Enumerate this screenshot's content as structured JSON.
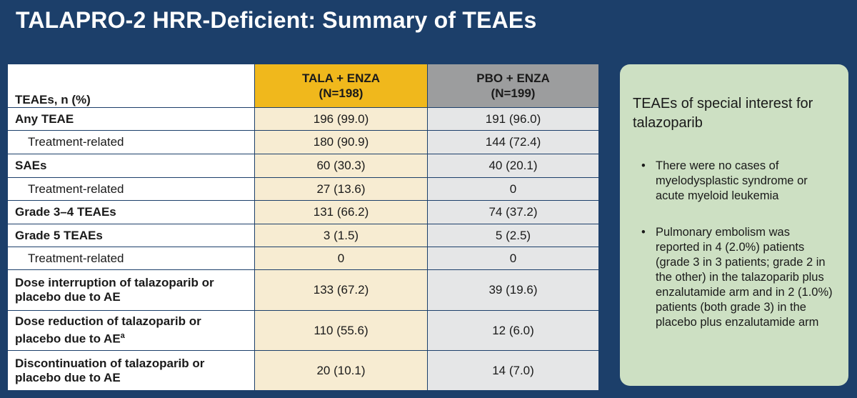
{
  "title": "TALAPRO-2 HRR-Deficient: Summary of TEAEs",
  "table": {
    "header": {
      "label": "TEAEs, n (%)",
      "tala_line1": "TALA + ENZA",
      "tala_line2": "(N=198)",
      "pbo_line1": "PBO + ENZA",
      "pbo_line2": "(N=199)"
    },
    "rows": [
      {
        "line1": "Any TEAE",
        "line2": "",
        "tala": "196 (99.0)",
        "pbo": "191 (96.0)"
      },
      {
        "line1": "Treatment-related",
        "line2": "",
        "tala": "180 (90.9)",
        "pbo": "144 (72.4)"
      },
      {
        "line1": "SAEs",
        "line2": "",
        "tala": "60 (30.3)",
        "pbo": "40 (20.1)"
      },
      {
        "line1": "Treatment-related",
        "line2": "",
        "tala": "27 (13.6)",
        "pbo": "0"
      },
      {
        "line1": "Grade 3–4 TEAEs",
        "line2": "",
        "tala": "131 (66.2)",
        "pbo": "74 (37.2)"
      },
      {
        "line1": "Grade 5 TEAEs",
        "line2": "",
        "tala": "3 (1.5)",
        "pbo": "5 (2.5)"
      },
      {
        "line1": "Treatment-related",
        "line2": "",
        "tala": "0",
        "pbo": "0"
      },
      {
        "line1": "Dose interruption of talazoparib or",
        "line2": "placebo due to AE",
        "tala": "133 (67.2)",
        "pbo": "39 (19.6)"
      },
      {
        "line1": "Dose reduction of talazoparib or",
        "line2": "placebo due to AE",
        "sup": "a",
        "tala": "110 (55.6)",
        "pbo": "12 (6.0)"
      },
      {
        "line1": "Discontinuation of talazoparib or",
        "line2": "placebo due to AE",
        "tala": "20 (10.1)",
        "pbo": "14 (7.0)"
      }
    ]
  },
  "panel": {
    "title": "TEAEs of special interest for talazoparib",
    "bullet_char": "•",
    "bullets": [
      "There were no cases of myelodysplastic syndrome or acute myeloid leukemia",
      "Pulmonary embolism was reported in 4 (2.0%) patients (grade 3 in 3 patients; grade 2 in the other) in the talazoparib plus enzalutamide arm and in 2 (1.0%) patients (both grade 3) in the placebo plus enzalutamide arm"
    ]
  },
  "colors": {
    "background": "#1c3f6a",
    "tala_header": "#f0b81c",
    "tala_cells": "#f7ecd2",
    "pbo_header": "#9c9d9e",
    "pbo_cells": "#e5e6e7",
    "panel": "#cde0c3"
  }
}
